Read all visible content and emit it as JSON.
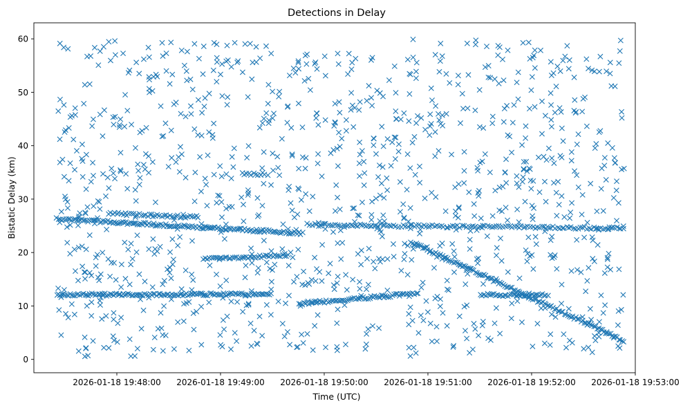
{
  "chart_data": {
    "type": "scatter",
    "title": "Detections in Delay",
    "xlabel": "Time (UTC)",
    "ylabel": "Bistatic Delay (km)",
    "x_unit": "seconds since 2026-01-18 19:48:00",
    "xlim": [
      -48,
      300
    ],
    "ylim": [
      -2.5,
      63.0
    ],
    "x_ticks": [
      0,
      60,
      120,
      180,
      240,
      300
    ],
    "x_tick_labels": [
      "2026-01-18 19:48:00",
      "2026-01-18 19:49:00",
      "2026-01-18 19:50:00",
      "2026-01-18 19:51:00",
      "2026-01-18 19:52:00",
      "2026-01-18 19:53:00"
    ],
    "y_ticks": [
      0,
      10,
      20,
      30,
      40,
      50,
      60
    ],
    "y_tick_labels": [
      "0",
      "10",
      "20",
      "30",
      "40",
      "50",
      "60"
    ],
    "grid": false,
    "marker": "x",
    "color": "#1f77b4",
    "x_range_of_detections": [
      -35,
      294
    ],
    "track_segments": [
      {
        "name": "upper-track-a",
        "x_start": -35,
        "x_end": 108,
        "y_start": 26.3,
        "y_end": 23.6,
        "count": 150
      },
      {
        "name": "upper-track-b",
        "x_start": 110,
        "x_end": 294,
        "y_start": 25.2,
        "y_end": 24.5,
        "count": 140
      },
      {
        "name": "lower-track-a",
        "x_start": -35,
        "x_end": 90,
        "y_start": 12.1,
        "y_end": 12.2,
        "count": 130
      },
      {
        "name": "lower-track-b",
        "x_start": 105,
        "x_end": 175,
        "y_start": 10.4,
        "y_end": 12.4,
        "count": 70
      },
      {
        "name": "lower-track-c",
        "x_start": 210,
        "x_end": 250,
        "y_start": 12.1,
        "y_end": 12.0,
        "count": 40
      },
      {
        "name": "descending-track",
        "x_start": 170,
        "x_end": 294,
        "y_start": 22.0,
        "y_end": 3.4,
        "count": 130
      },
      {
        "name": "middle-track",
        "x_start": 50,
        "x_end": 100,
        "y_start": 18.7,
        "y_end": 19.6,
        "count": 45
      },
      {
        "name": "short-track-35km",
        "x_start": 72,
        "x_end": 88,
        "y_start": 34.7,
        "y_end": 34.7,
        "count": 12
      },
      {
        "name": "short-track-27km",
        "x_start": -5,
        "x_end": 48,
        "y_start": 27.3,
        "y_end": 26.6,
        "count": 45
      }
    ],
    "clutter": {
      "count": 1150,
      "y_range": [
        0.5,
        60
      ]
    }
  }
}
